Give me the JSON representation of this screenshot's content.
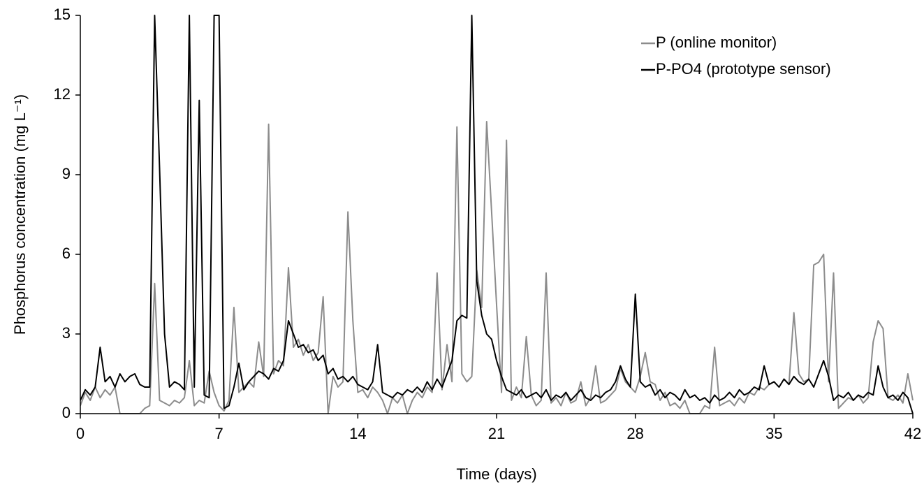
{
  "chart_data": {
    "type": "line",
    "x_label": "Time (days)",
    "y_label": "Phosphorus concentration (mg L⁻¹)",
    "xlim": [
      0,
      42
    ],
    "xticks": [
      0,
      7,
      14,
      21,
      28,
      35,
      42
    ],
    "ylim": [
      0,
      15
    ],
    "yticks": [
      0,
      3,
      6,
      9,
      12,
      15
    ],
    "legend": "top-right",
    "x": [
      0,
      0.25,
      0.5,
      0.75,
      1,
      1.25,
      1.5,
      1.75,
      2,
      2.25,
      2.5,
      2.75,
      3,
      3.25,
      3.5,
      3.75,
      4,
      4.25,
      4.5,
      4.75,
      5,
      5.25,
      5.5,
      5.75,
      6,
      6.25,
      6.5,
      6.75,
      7,
      7.25,
      7.5,
      7.75,
      8,
      8.25,
      8.5,
      8.75,
      9,
      9.25,
      9.5,
      9.75,
      10,
      10.25,
      10.5,
      10.75,
      11,
      11.25,
      11.5,
      11.75,
      12,
      12.25,
      12.5,
      12.75,
      13,
      13.25,
      13.5,
      13.75,
      14,
      14.25,
      14.5,
      14.75,
      15,
      15.25,
      15.5,
      15.75,
      16,
      16.25,
      16.5,
      16.75,
      17,
      17.25,
      17.5,
      17.75,
      18,
      18.25,
      18.5,
      18.75,
      19,
      19.25,
      19.5,
      19.75,
      20,
      20.25,
      20.5,
      20.75,
      21,
      21.25,
      21.5,
      21.75,
      22,
      22.25,
      22.5,
      22.75,
      23,
      23.25,
      23.5,
      23.75,
      24,
      24.25,
      24.5,
      24.75,
      25,
      25.25,
      25.5,
      25.75,
      26,
      26.25,
      26.5,
      26.75,
      27,
      27.25,
      27.5,
      27.75,
      28,
      28.25,
      28.5,
      28.75,
      29,
      29.25,
      29.5,
      29.75,
      30,
      30.25,
      30.5,
      30.75,
      31,
      31.25,
      31.5,
      31.75,
      32,
      32.25,
      32.5,
      32.75,
      33,
      33.25,
      33.5,
      33.75,
      34,
      34.25,
      34.5,
      34.75,
      35,
      35.25,
      35.5,
      35.75,
      36,
      36.25,
      36.5,
      36.75,
      37,
      37.25,
      37.5,
      37.75,
      38,
      38.25,
      38.5,
      38.75,
      39,
      39.25,
      39.5,
      39.75,
      40,
      40.25,
      40.5,
      40.75,
      41,
      41.25,
      41.5,
      41.75,
      42
    ],
    "series": [
      {
        "name": "P (online monitor)",
        "color": "#8c8c8c",
        "values": [
          0.3,
          0.8,
          0.5,
          1.0,
          0.6,
          0.9,
          0.7,
          1.0,
          0,
          0,
          0,
          0,
          0,
          0.2,
          0.3,
          4.9,
          0.5,
          0.4,
          0.3,
          0.5,
          0.4,
          0.6,
          2.0,
          0.3,
          0.5,
          0.4,
          1.6,
          0.8,
          0.3,
          0.1,
          0.5,
          4.0,
          0.8,
          1.0,
          1.2,
          1.0,
          2.7,
          1.4,
          10.9,
          1.5,
          2.0,
          1.8,
          5.5,
          2.5,
          2.8,
          2.2,
          2.6,
          2.0,
          2.3,
          4.4,
          0,
          1.4,
          1.0,
          1.2,
          7.6,
          3.5,
          0.8,
          0.9,
          0.6,
          1.0,
          0.8,
          0.5,
          0,
          0.6,
          0.4,
          0.7,
          0,
          0.5,
          0.8,
          0.6,
          1.0,
          0.8,
          5.3,
          0.9,
          2.6,
          1.2,
          10.8,
          1.5,
          1.2,
          1.4,
          5.4,
          4.0,
          11.0,
          7.6,
          4.1,
          0.8,
          10.3,
          0.5,
          1.0,
          0.6,
          2.9,
          0.7,
          0.3,
          0.5,
          5.3,
          0.4,
          0.6,
          0.3,
          0.8,
          0.4,
          0.5,
          1.2,
          0.3,
          0.6,
          1.8,
          0.4,
          0.5,
          0.7,
          0.9,
          1.7,
          1.2,
          1.0,
          0.8,
          1.4,
          2.3,
          1.2,
          1.1,
          0.5,
          0.8,
          0.3,
          0.4,
          0.2,
          0.5,
          0,
          0,
          0,
          0.3,
          0.2,
          2.5,
          0.3,
          0.4,
          0.5,
          0.3,
          0.6,
          0.4,
          0.8,
          0.7,
          1.0,
          0.9,
          1.1,
          1.2,
          1.0,
          1.3,
          1.1,
          3.8,
          1.5,
          1.2,
          1.3,
          5.6,
          5.7,
          6.0,
          1.2,
          5.3,
          0.2,
          0.4,
          0.6,
          0.5,
          0.7,
          0.4,
          0.6,
          2.7,
          3.5,
          3.2,
          0.6,
          0.5,
          0.7,
          0.4,
          1.5,
          0.5
        ]
      },
      {
        "name": "P-PO4 (prototype sensor)",
        "color": "#000000",
        "values": [
          0.5,
          0.9,
          0.7,
          1.0,
          2.5,
          1.2,
          1.4,
          1.0,
          1.5,
          1.2,
          1.4,
          1.5,
          1.1,
          1.0,
          1.0,
          15,
          9.2,
          3.0,
          1.0,
          1.2,
          1.1,
          0.9,
          15,
          1.0,
          11.8,
          0.7,
          0.6,
          15,
          15,
          0.2,
          0.3,
          1.0,
          1.9,
          0.9,
          1.2,
          1.4,
          1.6,
          1.5,
          1.3,
          1.7,
          1.6,
          2.0,
          3.5,
          3.0,
          2.5,
          2.6,
          2.3,
          2.4,
          2.0,
          2.2,
          1.5,
          1.7,
          1.3,
          1.4,
          1.2,
          1.4,
          1.1,
          1.0,
          0.9,
          1.2,
          2.6,
          0.8,
          0.7,
          0.6,
          0.8,
          0.7,
          0.9,
          0.8,
          1.0,
          0.8,
          1.2,
          0.9,
          1.3,
          1.0,
          1.5,
          2.0,
          3.5,
          3.7,
          3.6,
          15,
          5.0,
          3.7,
          3.0,
          2.8,
          2.0,
          1.4,
          0.9,
          0.8,
          0.7,
          0.9,
          0.6,
          0.7,
          0.8,
          0.6,
          0.9,
          0.5,
          0.7,
          0.6,
          0.8,
          0.5,
          0.7,
          0.9,
          0.6,
          0.5,
          0.7,
          0.6,
          0.8,
          0.9,
          1.2,
          1.8,
          1.3,
          1.0,
          4.5,
          1.2,
          1.0,
          1.1,
          0.7,
          0.9,
          0.6,
          0.8,
          0.7,
          0.5,
          0.9,
          0.6,
          0.7,
          0.5,
          0.6,
          0.4,
          0.7,
          0.5,
          0.6,
          0.8,
          0.6,
          0.9,
          0.7,
          0.8,
          1.0,
          0.9,
          1.8,
          1.1,
          1.2,
          1.0,
          1.3,
          1.1,
          1.4,
          1.2,
          1.1,
          1.3,
          1.0,
          1.5,
          2.0,
          1.4,
          0.5,
          0.7,
          0.6,
          0.8,
          0.5,
          0.7,
          0.6,
          0.8,
          0.7,
          1.8,
          1.0,
          0.6,
          0.7,
          0.5,
          0.8,
          0.6,
          0
        ]
      }
    ]
  }
}
